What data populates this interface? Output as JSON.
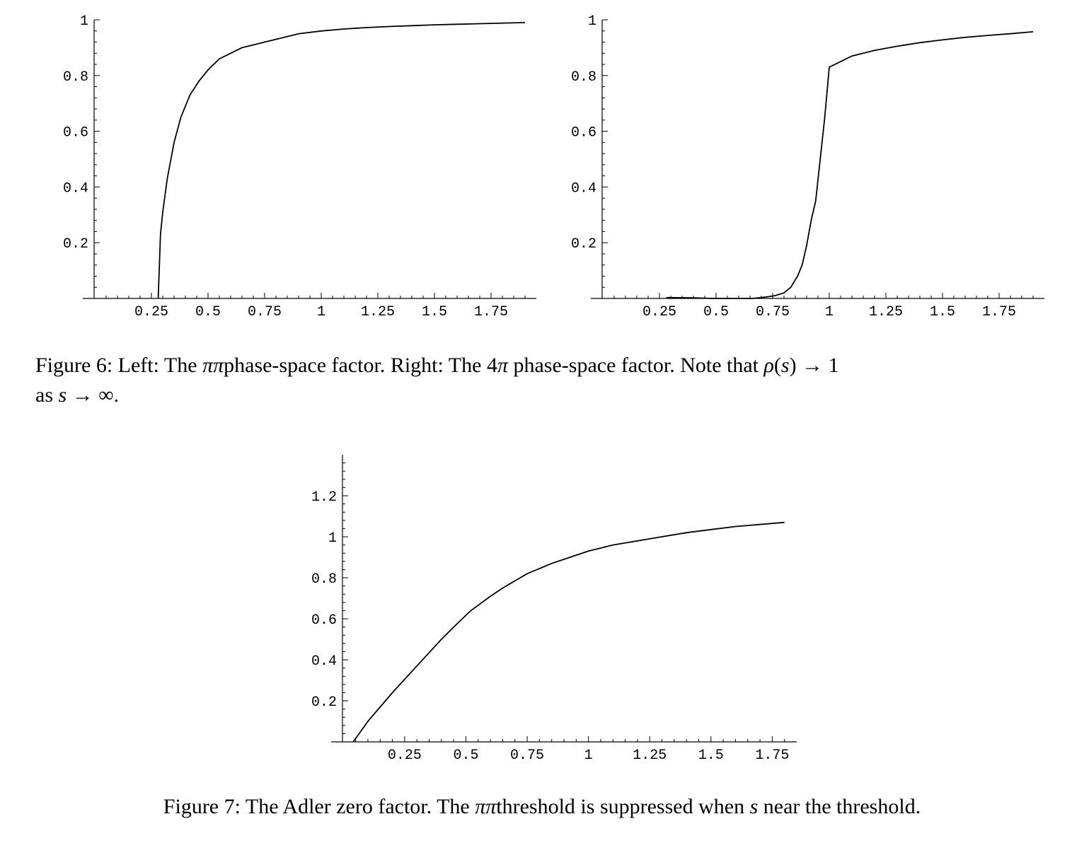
{
  "figure6": {
    "caption_prefix": "Figure 6: Left: The ",
    "pipi": "ππ",
    "caption_mid": "phase-space factor. Right: The 4",
    "pi": "π",
    "caption_mid2": " phase-space factor. Note that ",
    "rho": "ρ",
    "caption_paren_open": "(",
    "s1": "s",
    "caption_paren_close": ") → 1",
    "caption_line2_prefix": "as ",
    "s2": "s",
    "caption_line2_suffix": " → ∞."
  },
  "figure7": {
    "caption_prefix": "Figure 7: The Adler zero factor. The ",
    "pipi": "ππ",
    "caption_mid": "threshold is suppressed when ",
    "s": "s",
    "caption_suffix": " near the threshold."
  },
  "chart_data": [
    {
      "type": "line",
      "name": "left",
      "x_ticks": [
        "0.25",
        "0.5",
        "0.75",
        "1",
        "1.25",
        "1.5",
        "1.75"
      ],
      "y_ticks": [
        "0.2",
        "0.4",
        "0.6",
        "0.8",
        "1"
      ],
      "xlim": [
        -0.05,
        1.95
      ],
      "ylim": [
        0,
        1
      ],
      "x": [
        0.28,
        0.29,
        0.3,
        0.32,
        0.35,
        0.38,
        0.42,
        0.46,
        0.5,
        0.55,
        0.6,
        0.65,
        0.7,
        0.75,
        0.8,
        0.9,
        1.0,
        1.1,
        1.2,
        1.3,
        1.4,
        1.5,
        1.6,
        1.7,
        1.9
      ],
      "y": [
        0.0,
        0.23,
        0.31,
        0.43,
        0.56,
        0.65,
        0.73,
        0.78,
        0.82,
        0.86,
        0.88,
        0.9,
        0.91,
        0.92,
        0.93,
        0.95,
        0.96,
        0.967,
        0.972,
        0.976,
        0.979,
        0.982,
        0.984,
        0.986,
        0.99
      ]
    },
    {
      "type": "line",
      "name": "right",
      "x_ticks": [
        "0.25",
        "0.5",
        "0.75",
        "1",
        "1.25",
        "1.5",
        "1.75"
      ],
      "y_ticks": [
        "0.2",
        "0.4",
        "0.6",
        "0.8",
        "1"
      ],
      "xlim": [
        -0.05,
        1.95
      ],
      "ylim": [
        0,
        1
      ],
      "x": [
        0.28,
        0.4,
        0.49,
        0.56,
        0.66,
        0.72,
        0.76,
        0.8,
        0.83,
        0.86,
        0.88,
        0.9,
        0.92,
        0.94,
        0.96,
        0.98,
        1.0,
        1.05,
        1.1,
        1.2,
        1.3,
        1.4,
        1.5,
        1.6,
        1.7,
        1.8,
        1.9
      ],
      "y": [
        0.003,
        0.002,
        0.0,
        0.0,
        0.0,
        0.005,
        0.01,
        0.02,
        0.04,
        0.08,
        0.12,
        0.19,
        0.28,
        0.35,
        0.5,
        0.65,
        0.83,
        0.85,
        0.87,
        0.89,
        0.905,
        0.918,
        0.928,
        0.937,
        0.944,
        0.95,
        0.957
      ]
    },
    {
      "type": "line",
      "name": "bottom",
      "x_ticks": [
        "0.25",
        "0.5",
        "0.75",
        "1",
        "1.25",
        "1.5",
        "1.75"
      ],
      "y_ticks": [
        "0.2",
        "0.4",
        "0.6",
        "0.8",
        "1",
        "1.2"
      ],
      "xlim": [
        -0.05,
        1.85
      ],
      "ylim": [
        0,
        1.4
      ],
      "x": [
        0.04,
        0.1,
        0.2,
        0.3,
        0.4,
        0.45,
        0.52,
        0.6,
        0.65,
        0.75,
        0.85,
        0.9,
        1.0,
        1.1,
        1.25,
        1.4,
        1.5,
        1.6,
        1.8
      ],
      "y": [
        0.0,
        0.1,
        0.24,
        0.37,
        0.5,
        0.56,
        0.64,
        0.71,
        0.75,
        0.82,
        0.87,
        0.89,
        0.93,
        0.96,
        0.99,
        1.02,
        1.035,
        1.05,
        1.07
      ]
    }
  ]
}
